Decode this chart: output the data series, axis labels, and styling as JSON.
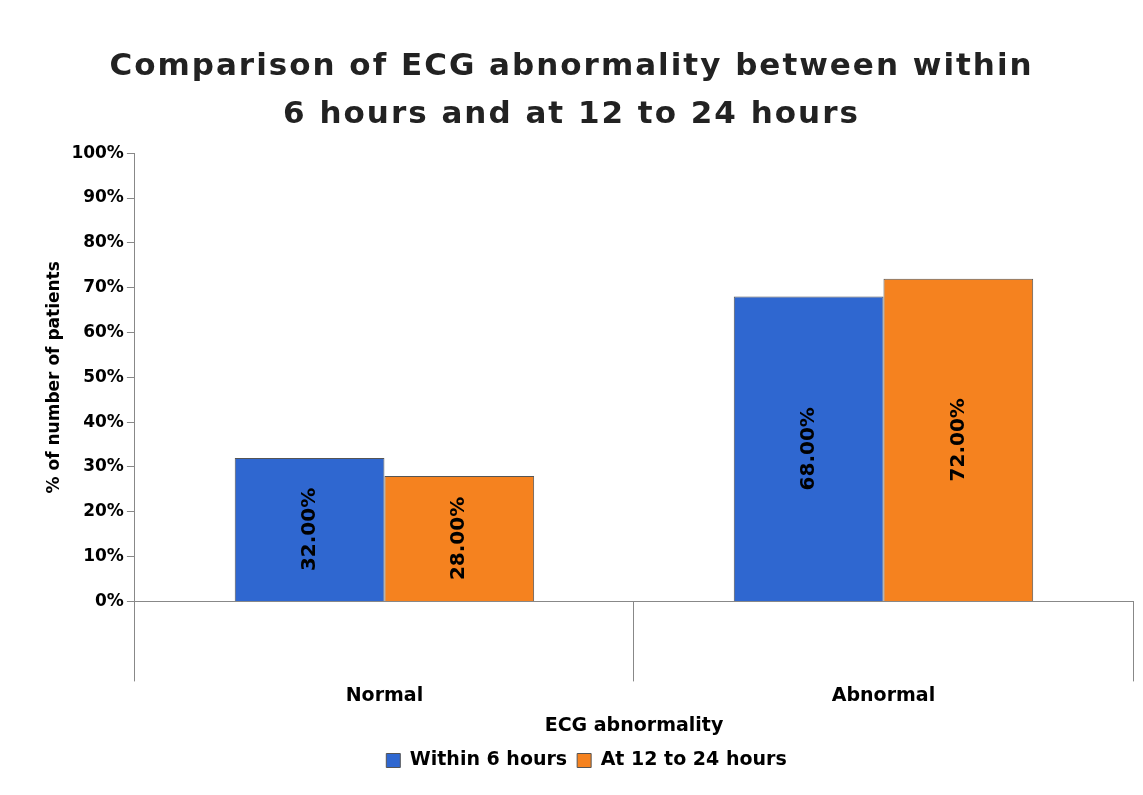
{
  "chart_data": {
    "type": "bar",
    "title": "Comparison of ECG abnormality between within 6 hours and at 12 to 24 hours",
    "xlabel": "ECG abnormality",
    "ylabel": "% of number of patients",
    "categories": [
      "Normal",
      "Abnormal"
    ],
    "series": [
      {
        "name": "Within 6 hours",
        "color": "#2f67d0",
        "values": [
          32,
          68
        ],
        "value_labels": [
          "32.00%",
          "68.00%"
        ]
      },
      {
        "name": "At 12 to 24 hours",
        "color": "#f5821f",
        "values": [
          28,
          72
        ],
        "value_labels": [
          "28.00%",
          "72.00%"
        ]
      }
    ],
    "ylim": [
      0,
      100
    ],
    "yticks": [
      {
        "value": 0,
        "label": "0%"
      },
      {
        "value": 10,
        "label": "10%"
      },
      {
        "value": 20,
        "label": "20%"
      },
      {
        "value": 30,
        "label": "30%"
      },
      {
        "value": 40,
        "label": "40%"
      },
      {
        "value": 50,
        "label": "50%"
      },
      {
        "value": 60,
        "label": "60%"
      },
      {
        "value": 70,
        "label": "70%"
      },
      {
        "value": 80,
        "label": "80%"
      },
      {
        "value": 90,
        "label": "90%"
      },
      {
        "value": 100,
        "label": "100%"
      }
    ],
    "grid": false,
    "legend": "bottom"
  }
}
